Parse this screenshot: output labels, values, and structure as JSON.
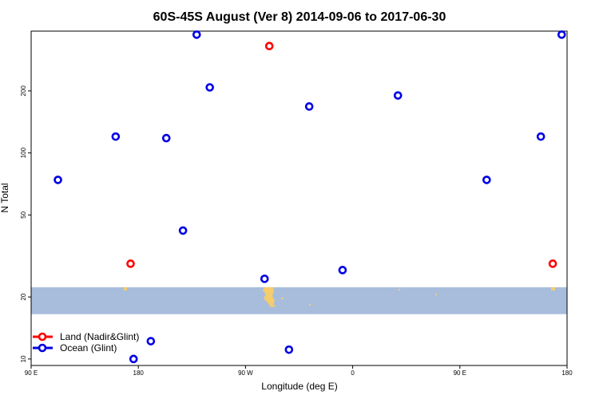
{
  "chart_data": {
    "type": "scatter",
    "title": "60S-45S August (Ver 8)   2014-09-06 to 2017-06-30",
    "xlabel": "Longitude (deg E)",
    "ylabel": "N Total",
    "y_scale": "log",
    "xlim": [
      90,
      540
    ],
    "ylim": [
      9.3,
      390
    ],
    "x_ticks": [
      {
        "value": 90,
        "label": "90 E"
      },
      {
        "value": 180,
        "label": "180"
      },
      {
        "value": 270,
        "label": "90 W"
      },
      {
        "value": 360,
        "label": "0"
      },
      {
        "value": 450,
        "label": "90 E"
      },
      {
        "value": 540,
        "label": "180"
      }
    ],
    "y_ticks": [
      {
        "value": 10,
        "label": "10"
      },
      {
        "value": 20,
        "label": "20"
      },
      {
        "value": 50,
        "label": "50"
      },
      {
        "value": 100,
        "label": "100"
      },
      {
        "value": 200,
        "label": "200"
      }
    ],
    "band": {
      "y_range": [
        16.5,
        22.3
      ],
      "color": "#a8bddc"
    },
    "land_color": "#f5cd6f",
    "series": [
      {
        "name": "Land (Nadir&Glint)",
        "color": "#ff0000",
        "x": [
          173.5,
          290,
          528
        ],
        "y": [
          29,
          330,
          29
        ]
      },
      {
        "name": "Ocean (Glint)",
        "color": "#0000e6",
        "x": [
          112.5,
          161,
          176,
          190.5,
          203.5,
          217.5,
          229,
          240,
          286,
          306.5,
          323.5,
          351.5,
          398,
          472.5,
          518,
          535.5
        ],
        "y": [
          74,
          120,
          10,
          12.2,
          118,
          42,
          375,
          208,
          24.5,
          11.1,
          168,
          27,
          190,
          74,
          120,
          375
        ]
      }
    ],
    "legend": "bottom-left",
    "grid": false
  }
}
